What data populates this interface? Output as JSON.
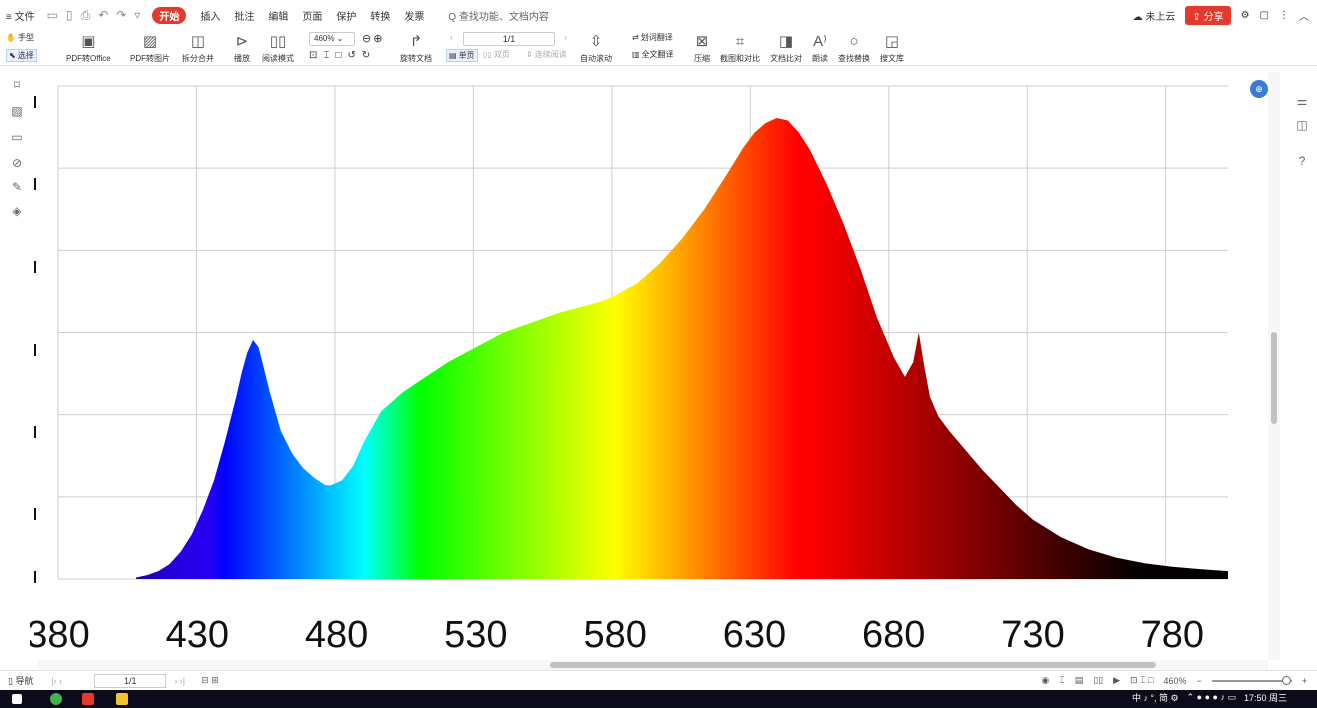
{
  "toolbar_top": {
    "menu_label": "≡ 文件",
    "tabs": [
      "开始",
      "插入",
      "批注",
      "编辑",
      "页面",
      "保护",
      "转换",
      "发票"
    ],
    "search_hint": "Q 查找功能、文档内容",
    "cloud_label": "未上云",
    "share_label": "分享"
  },
  "ribbon": {
    "hand_tool": "手型",
    "select_tool": "选择",
    "pdf_to_office": "PDF转Office",
    "pdf_to_image": "PDF转图片",
    "split_merge": "拆分合并",
    "play": "播放",
    "reading_mode": "阅读模式",
    "zoom_value": "460%",
    "rotate_doc": "旋转文档",
    "page_value": "1/1",
    "single_page": "单页",
    "double_page": "双页",
    "continuous": "连续阅读",
    "auto_scroll": "自动滚动",
    "word_translate": "划词翻译",
    "full_translate": "全文翻译",
    "compress": "压缩",
    "screenshot_compare": "截图和对比",
    "doc_compare": "文档比对",
    "read_aloud": "朗读",
    "find_replace": "查找替换",
    "search_library": "搜文库"
  },
  "status_bar": {
    "nav_label": "导航",
    "page_value": "1/1",
    "zoom_value": "460%"
  },
  "taskbar": {
    "ime_text": "中 ♪ °, 简 ⚙",
    "time": "17:50 周三"
  },
  "chart_data": {
    "type": "area",
    "x_ticks": [
      "380",
      "430",
      "480",
      "530",
      "580",
      "630",
      "680",
      "730",
      "780"
    ],
    "x_tick_values": [
      380,
      430,
      480,
      530,
      580,
      630,
      680,
      730,
      780
    ],
    "xlim": [
      380,
      800
    ],
    "ylim": [
      0,
      1
    ],
    "grid": true,
    "fill": "visible-spectrum gradient by wavelength",
    "series": [
      {
        "x": [
          408,
          412,
          416,
          420,
          424,
          428,
          432,
          436,
          440,
          444,
          446,
          448,
          450,
          452,
          456,
          460,
          464,
          468,
          472,
          476,
          478,
          482,
          486,
          490,
          496,
          504,
          512,
          520,
          530,
          540,
          550,
          560,
          570,
          576,
          580,
          588,
          596,
          604,
          612,
          620,
          626,
          630,
          634,
          638,
          642,
          646,
          650,
          656,
          662,
          668,
          674,
          680,
          684,
          687,
          689,
          691,
          693,
          696,
          700,
          706,
          712,
          718,
          724,
          730,
          740,
          750,
          760,
          770,
          780,
          790,
          800
        ],
        "values": [
          0.003,
          0.008,
          0.016,
          0.03,
          0.055,
          0.09,
          0.14,
          0.2,
          0.28,
          0.37,
          0.42,
          0.46,
          0.485,
          0.47,
          0.38,
          0.3,
          0.255,
          0.225,
          0.205,
          0.19,
          0.19,
          0.2,
          0.23,
          0.28,
          0.34,
          0.38,
          0.41,
          0.44,
          0.47,
          0.5,
          0.52,
          0.54,
          0.555,
          0.565,
          0.575,
          0.6,
          0.64,
          0.69,
          0.75,
          0.82,
          0.875,
          0.905,
          0.925,
          0.935,
          0.93,
          0.905,
          0.87,
          0.8,
          0.72,
          0.63,
          0.53,
          0.45,
          0.41,
          0.44,
          0.5,
          0.43,
          0.37,
          0.33,
          0.3,
          0.26,
          0.22,
          0.185,
          0.15,
          0.12,
          0.085,
          0.06,
          0.043,
          0.032,
          0.025,
          0.02,
          0.016
        ]
      }
    ]
  }
}
